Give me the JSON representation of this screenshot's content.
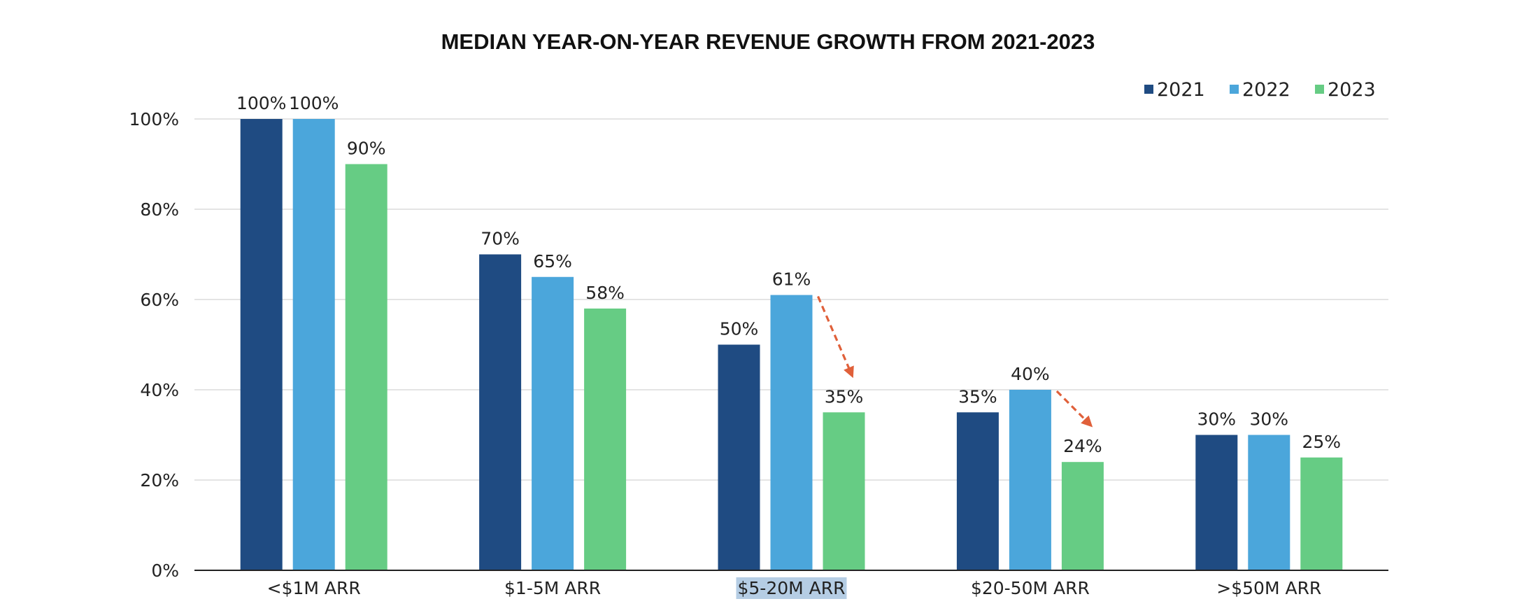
{
  "chart_data": {
    "type": "bar",
    "title": "MEDIAN YEAR-ON-YEAR REVENUE GROWTH FROM 2021-2023",
    "xlabel": "",
    "ylabel": "",
    "ylim": [
      0,
      100
    ],
    "y_ticks": [
      0,
      20,
      40,
      60,
      80,
      100
    ],
    "y_tick_labels": [
      "0%",
      "20%",
      "40%",
      "60%",
      "80%",
      "100%"
    ],
    "value_suffix": "%",
    "grid": true,
    "legend_position": "top-right",
    "categories": [
      "<$1M ARR",
      "$1-5M ARR",
      "$5-20M ARR",
      "$20-50M ARR",
      ">$50M ARR"
    ],
    "highlighted_category": "$5-20M ARR",
    "series": [
      {
        "name": "2021",
        "color": "#1f4b82",
        "values": [
          100,
          70,
          50,
          35,
          30
        ]
      },
      {
        "name": "2022",
        "color": "#4ba6db",
        "values": [
          100,
          65,
          61,
          40,
          30
        ]
      },
      {
        "name": "2023",
        "color": "#66cc84",
        "values": [
          90,
          58,
          35,
          24,
          25
        ]
      }
    ],
    "annotations": [
      {
        "type": "dashed-arrow",
        "category": "$5-20M ARR",
        "from_series": "2022",
        "to_series": "2023",
        "color": "#e0603a"
      },
      {
        "type": "dashed-arrow",
        "category": "$20-50M ARR",
        "from_series": "2022",
        "to_series": "2023",
        "color": "#e0603a"
      }
    ]
  }
}
